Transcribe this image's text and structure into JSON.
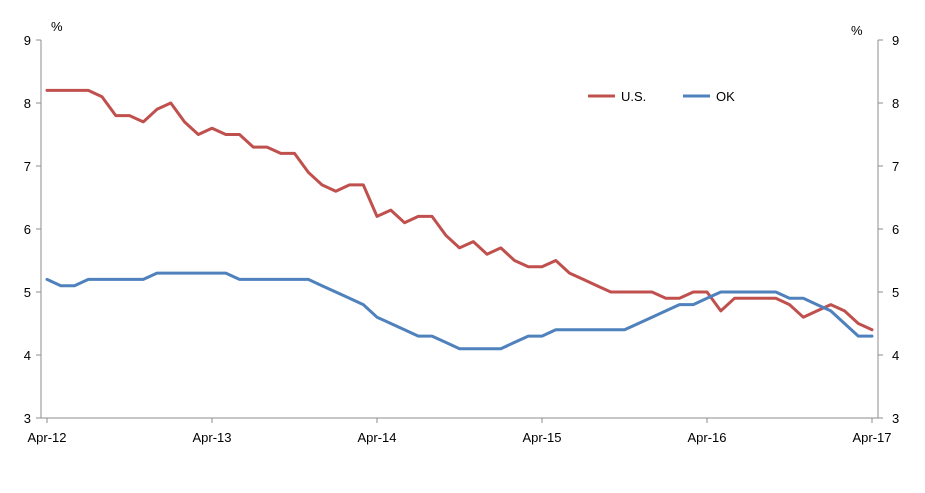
{
  "chart_data": {
    "type": "line",
    "title": "",
    "xlabel": "",
    "ylabel": "%",
    "ylabel_right": "%",
    "ylim": [
      3,
      9
    ],
    "yticks": [
      3,
      4,
      5,
      6,
      7,
      8,
      9
    ],
    "x_start": "2012-04",
    "x_end": "2017-04",
    "xtick_labels": [
      "Apr-12",
      "Apr-13",
      "Apr-14",
      "Apr-15",
      "Apr-16",
      "Apr-17"
    ],
    "grid": false,
    "legend_position": "top-right",
    "x": [
      "2012-04",
      "2012-05",
      "2012-06",
      "2012-07",
      "2012-08",
      "2012-09",
      "2012-10",
      "2012-11",
      "2012-12",
      "2013-01",
      "2013-02",
      "2013-03",
      "2013-04",
      "2013-05",
      "2013-06",
      "2013-07",
      "2013-08",
      "2013-09",
      "2013-10",
      "2013-11",
      "2013-12",
      "2014-01",
      "2014-02",
      "2014-03",
      "2014-04",
      "2014-05",
      "2014-06",
      "2014-07",
      "2014-08",
      "2014-09",
      "2014-10",
      "2014-11",
      "2014-12",
      "2015-01",
      "2015-02",
      "2015-03",
      "2015-04",
      "2015-05",
      "2015-06",
      "2015-07",
      "2015-08",
      "2015-09",
      "2015-10",
      "2015-11",
      "2015-12",
      "2016-01",
      "2016-02",
      "2016-03",
      "2016-04",
      "2016-05",
      "2016-06",
      "2016-07",
      "2016-08",
      "2016-09",
      "2016-10",
      "2016-11",
      "2016-12",
      "2017-01",
      "2017-02",
      "2017-03",
      "2017-04"
    ],
    "series": [
      {
        "name": "U.S.",
        "color": "#c0504d",
        "values": [
          8.2,
          8.2,
          8.2,
          8.2,
          8.1,
          7.8,
          7.8,
          7.7,
          7.9,
          8.0,
          7.7,
          7.5,
          7.6,
          7.5,
          7.5,
          7.3,
          7.3,
          7.2,
          7.2,
          6.9,
          6.7,
          6.6,
          6.7,
          6.7,
          6.2,
          6.3,
          6.1,
          6.2,
          6.2,
          5.9,
          5.7,
          5.8,
          5.6,
          5.7,
          5.5,
          5.4,
          5.4,
          5.5,
          5.3,
          5.2,
          5.1,
          5.0,
          5.0,
          5.0,
          5.0,
          4.9,
          4.9,
          5.0,
          5.0,
          4.7,
          4.9,
          4.9,
          4.9,
          4.9,
          4.8,
          4.6,
          4.7,
          4.8,
          4.7,
          4.5,
          4.4
        ]
      },
      {
        "name": "OK",
        "color": "#4f81bd",
        "values": [
          5.2,
          5.1,
          5.1,
          5.2,
          5.2,
          5.2,
          5.2,
          5.2,
          5.3,
          5.3,
          5.3,
          5.3,
          5.3,
          5.3,
          5.2,
          5.2,
          5.2,
          5.2,
          5.2,
          5.2,
          5.1,
          5.0,
          4.9,
          4.8,
          4.6,
          4.5,
          4.4,
          4.3,
          4.3,
          4.2,
          4.1,
          4.1,
          4.1,
          4.1,
          4.2,
          4.3,
          4.3,
          4.4,
          4.4,
          4.4,
          4.4,
          4.4,
          4.4,
          4.5,
          4.6,
          4.7,
          4.8,
          4.8,
          4.9,
          5.0,
          5.0,
          5.0,
          5.0,
          5.0,
          4.9,
          4.9,
          4.8,
          4.7,
          4.5,
          4.3,
          4.3
        ]
      }
    ]
  }
}
